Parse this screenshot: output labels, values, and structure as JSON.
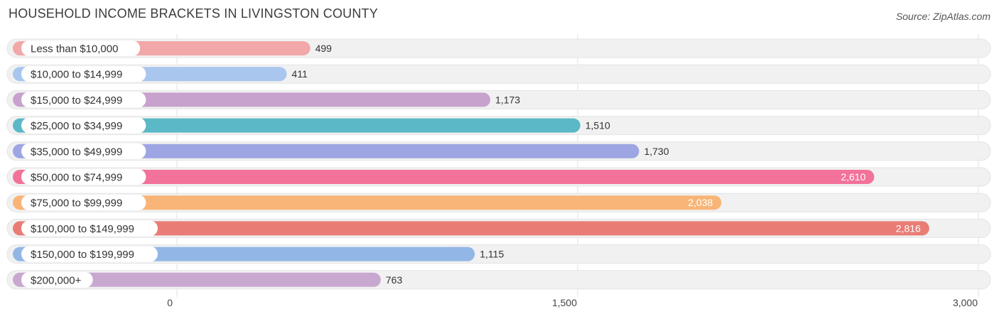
{
  "header": {
    "title": "HOUSEHOLD INCOME BRACKETS IN LIVINGSTON COUNTY",
    "source": "Source: ZipAtlas.com"
  },
  "chart_data": {
    "type": "bar",
    "orientation": "horizontal",
    "title": "HOUSEHOLD INCOME BRACKETS IN LIVINGSTON COUNTY",
    "categories": [
      "Less than $10,000",
      "$10,000 to $14,999",
      "$15,000 to $24,999",
      "$25,000 to $34,999",
      "$35,000 to $49,999",
      "$50,000 to $74,999",
      "$75,000 to $99,999",
      "$100,000 to $149,999",
      "$150,000 to $199,999",
      "$200,000+"
    ],
    "values": [
      499,
      411,
      1173,
      1510,
      1730,
      2610,
      2038,
      2816,
      1115,
      763
    ],
    "value_labels": [
      "499",
      "411",
      "1,173",
      "1,510",
      "1,730",
      "2,610",
      "2,038",
      "2,816",
      "1,115",
      "763"
    ],
    "colors": [
      "#f2a7a9",
      "#a8c6ee",
      "#c7a2cc",
      "#5bb8c6",
      "#9da6e3",
      "#f2729a",
      "#f8b577",
      "#ea7c76",
      "#92b7e6",
      "#c9a8d0"
    ],
    "xlim": [
      0,
      3000
    ],
    "x_ticks": [
      0,
      1500,
      3000
    ],
    "x_tick_labels": [
      "0",
      "1,500",
      "3,000"
    ],
    "grid": true
  }
}
